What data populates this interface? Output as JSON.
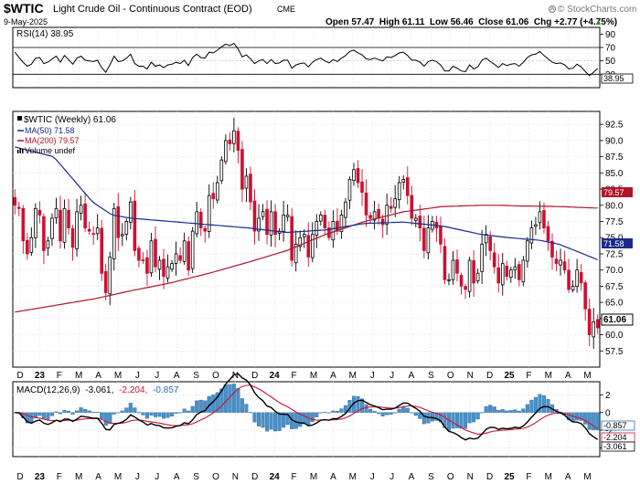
{
  "header": {
    "symbol": "$WTIC",
    "name": "Light Crude Oil - Continuous Contract (EOD)",
    "exchange": "CME",
    "date": "9-May-2025",
    "ohlc": "Open 57.47  High 61.11  Low 56.46  Close 61.06  Chg +2.77 (+4.75%)",
    "ohlc_arrow": "▲",
    "watermark": "© StockCharts.com",
    "watermark_icon": "sc-logo-icon"
  },
  "colors": {
    "up": "#000000",
    "down": "#cc1133",
    "ma50": "#1a2a8c",
    "ma200": "#b0142a",
    "macd": "#000000",
    "signal": "#cc1133",
    "hist": "#4a90c8"
  },
  "x_axis": {
    "labels": [
      "D",
      "23",
      "F",
      "M",
      "A",
      "M",
      "J",
      "J",
      "A",
      "S",
      "O",
      "N",
      "D",
      "24",
      "F",
      "M",
      "A",
      "M",
      "J",
      "J",
      "A",
      "S",
      "O",
      "N",
      "D",
      "25",
      "F",
      "M",
      "A",
      "M"
    ],
    "bold": [
      "23",
      "24",
      "25"
    ]
  },
  "rsi": {
    "legend": "RSI(14) 38.95",
    "ticks": [
      90,
      70,
      50,
      30
    ],
    "ylim": [
      10,
      100
    ],
    "last_label": "38.95",
    "extra_label": "50"
  },
  "price": {
    "legend": [
      "$WTIC (Weekly) 61.06",
      "MA(50) 71.58",
      "MA(200) 79.57",
      "Volume undef"
    ],
    "ticks": [
      92.5,
      90.0,
      87.5,
      85.0,
      82.5,
      80.0,
      77.5,
      75.0,
      72.5,
      70.0,
      67.5,
      65.0,
      62.5,
      60.0,
      57.5
    ],
    "ylim": [
      55.0,
      94.5
    ],
    "ma50_label": "71.58",
    "ma200_label": "79.57",
    "last_label": "61.06"
  },
  "macd": {
    "legend_prefix": "MACD(12,26,9)",
    "legend_macd": "-3.061,",
    "legend_signal": "-2.204,",
    "legend_hist": "-0.857",
    "ticks": [
      2,
      0,
      -2,
      -4
    ],
    "ylim": [
      -5.0,
      3.5
    ],
    "hist_label": "-0.857",
    "signal_label": "-2.204",
    "macd_label": "-3.061"
  },
  "chart_data": {
    "type": "candlestick",
    "title": "$WTIC Light Crude Oil - Continuous Contract (EOD)",
    "start_week": "2022-12-02",
    "closes": [
      80.0,
      79.5,
      74.5,
      72.5,
      75.0,
      79.5,
      78.5,
      73.0,
      74.5,
      78.0,
      79.5,
      74.5,
      79.5,
      76.5,
      73.5,
      79.0,
      80.0,
      76.5,
      76.0,
      75.5,
      76.5,
      69.5,
      66.5,
      72.0,
      79.5,
      75.0,
      75.5,
      77.5,
      80.5,
      73.0,
      71.5,
      71.5,
      69.5,
      74.5,
      70.5,
      71.5,
      69.0,
      70.5,
      71.0,
      72.5,
      71.5,
      74.5,
      70.0,
      76.0,
      79.0,
      76.5,
      76.0,
      81.5,
      81.0,
      83.5,
      87.0,
      90.0,
      89.5,
      91.5,
      88.5,
      82.5,
      84.5,
      80.5,
      76.0,
      78.0,
      79.0,
      75.5,
      79.0,
      75.5,
      76.0,
      78.5,
      78.5,
      71.5,
      74.0,
      75.0,
      75.5,
      72.0,
      75.5,
      77.5,
      78.5,
      76.5,
      75.0,
      77.5,
      76.0,
      78.5,
      80.5,
      84.0,
      85.5,
      83.5,
      82.0,
      78.5,
      78.0,
      79.0,
      78.0,
      77.0,
      80.0,
      79.5,
      81.0,
      83.5,
      84.0,
      81.5,
      78.0,
      78.0,
      76.5,
      73.0,
      76.5,
      77.5,
      76.5,
      74.0,
      68.5,
      68.5,
      71.5,
      69.5,
      67.5,
      67.0,
      71.5,
      68.0,
      69.5,
      74.0,
      75.5,
      73.0,
      70.5,
      68.0,
      71.0,
      69.0,
      70.0,
      70.5,
      68.5,
      71.5,
      74.5,
      76.5,
      77.0,
      79.0,
      76.5,
      74.5,
      72.0,
      71.0,
      71.5,
      70.0,
      67.0,
      67.5,
      70.0,
      68.0,
      64.0,
      60.0,
      62.0,
      61.06
    ],
    "ma50_x": [
      0,
      10,
      15,
      20,
      25,
      30,
      40,
      50,
      60,
      70,
      80,
      90,
      100,
      110,
      120,
      127,
      135,
      140,
      145,
      150
    ],
    "ma50": [
      89.0,
      87.5,
      84.0,
      80.5,
      78.5,
      78.0,
      77.5,
      77.0,
      76.5,
      75.8,
      76.2,
      77.2,
      77.4,
      76.8,
      75.5,
      75.0,
      74.6,
      74.0,
      72.8,
      71.58
    ],
    "ma200_x": [
      0,
      10,
      20,
      30,
      40,
      50,
      60,
      70,
      80,
      90,
      100,
      110,
      120,
      125,
      130,
      140,
      150
    ],
    "ma200": [
      63.5,
      64.5,
      65.5,
      66.8,
      68.0,
      69.5,
      71.2,
      73.0,
      75.5,
      77.5,
      79.0,
      79.8,
      80.0,
      80.0,
      79.9,
      79.8,
      79.57
    ],
    "rsi": [
      63,
      55,
      48,
      42,
      45,
      54,
      55,
      46,
      48,
      53,
      57,
      48,
      58,
      52,
      45,
      54,
      57,
      51,
      50,
      49,
      51,
      40,
      33,
      44,
      57,
      49,
      50,
      54,
      60,
      46,
      42,
      42,
      38,
      48,
      42,
      44,
      40,
      44,
      45,
      48,
      46,
      51,
      43,
      55,
      60,
      55,
      54,
      63,
      62,
      66,
      71,
      75,
      73,
      76,
      68,
      56,
      59,
      53,
      46,
      50,
      52,
      46,
      52,
      46,
      47,
      51,
      51,
      39,
      44,
      46,
      47,
      41,
      48,
      52,
      54,
      50,
      47,
      52,
      49,
      54,
      58,
      64,
      66,
      62,
      59,
      53,
      52,
      54,
      52,
      50,
      56,
      55,
      58,
      62,
      63,
      58,
      51,
      51,
      48,
      42,
      49,
      51,
      49,
      44,
      35,
      35,
      42,
      39,
      35,
      34,
      44,
      38,
      41,
      51,
      54,
      49,
      45,
      40,
      46,
      43,
      45,
      46,
      42,
      48,
      55,
      59,
      60,
      64,
      58,
      53,
      48,
      46,
      47,
      44,
      38,
      39,
      45,
      41,
      34,
      28,
      33,
      38.95
    ],
    "ylim": [
      55.0,
      94.5
    ]
  }
}
